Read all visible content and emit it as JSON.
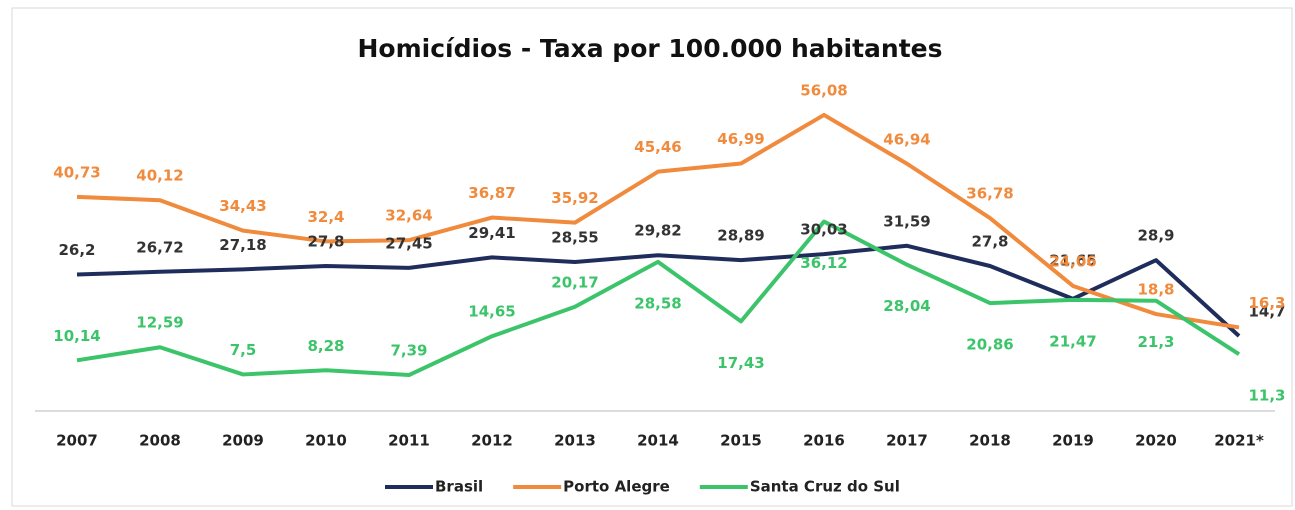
{
  "chart_data": {
    "type": "line",
    "title": "Homicídios - Taxa por 100.000 habitantes",
    "categories": [
      "2007",
      "2008",
      "2009",
      "2010",
      "2011",
      "2012",
      "2013",
      "2014",
      "2015",
      "2016",
      "2017",
      "2018",
      "2019",
      "2020",
      "2021*"
    ],
    "ylim": [
      0,
      60
    ],
    "legend": "bottom",
    "series": [
      {
        "name": "Brasil",
        "color": "#1f2d5c",
        "values": [
          26.2,
          26.72,
          27.18,
          27.8,
          27.45,
          29.41,
          28.55,
          29.82,
          28.89,
          30.03,
          31.59,
          27.8,
          21.65,
          28.9,
          14.7
        ],
        "value_labels": [
          "26,2",
          "26,72",
          "27,18",
          "27,8",
          "27,45",
          "29,41",
          "28,55",
          "29,82",
          "28,89",
          "30,03",
          "31,59",
          "27,8",
          "21,65",
          "28,9",
          "14,7"
        ]
      },
      {
        "name": "Porto Alegre",
        "color": "#f08a3c",
        "values": [
          40.73,
          40.12,
          34.43,
          32.4,
          32.64,
          36.87,
          35.92,
          45.46,
          46.99,
          56.08,
          46.94,
          36.78,
          24.06,
          18.8,
          16.3
        ],
        "value_labels": [
          "40,73",
          "40,12",
          "34,43",
          "32,4",
          "32,64",
          "36,87",
          "35,92",
          "45,46",
          "46,99",
          "56,08",
          "46,94",
          "36,78",
          "24,06",
          "18,8",
          "16,3"
        ]
      },
      {
        "name": "Santa Cruz do Sul",
        "color": "#3cc46a",
        "values": [
          10.14,
          12.59,
          7.5,
          8.28,
          7.39,
          14.65,
          20.17,
          28.58,
          17.43,
          36.12,
          28.04,
          20.86,
          21.47,
          21.3,
          11.3
        ],
        "value_labels": [
          "10,14",
          "12,59",
          "7,5",
          "8,28",
          "7,39",
          "14,65",
          "20,17",
          "28,58",
          "17,43",
          "36,12",
          "28,04",
          "20,86",
          "21,47",
          "21,3",
          "11,3"
        ]
      }
    ]
  }
}
